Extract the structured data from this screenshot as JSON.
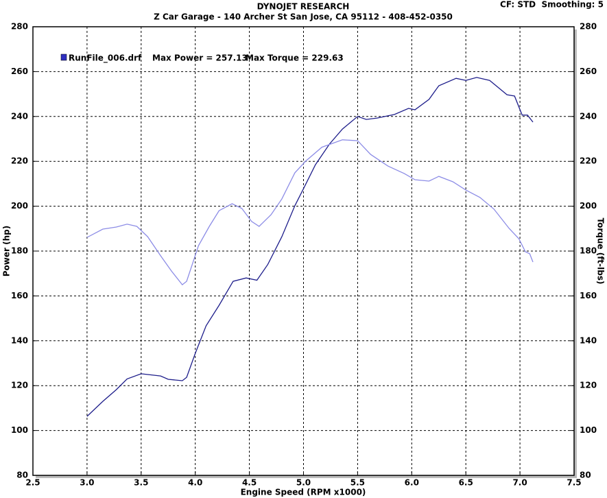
{
  "chart_data": {
    "type": "line",
    "title": "DYNOJET RESEARCH",
    "subtitle": "Z Car Garage - 140 Archer St San Jose, CA 95112 - 408-452-0350",
    "settings_text": "CF: STD  Smoothing: 5",
    "annotations": [
      "Max Power = 257.13",
      "Max Torque = 229.63"
    ],
    "x_label": "Engine Speed (RPM x1000)",
    "y_label": "Power (hp)",
    "y2_label": "Torque (ft-lbs)",
    "xlim": [
      2.5,
      7.5
    ],
    "xticks": [
      2.5,
      {
        "value": 3,
        "label": "3.0"
      },
      3.5,
      {
        "value": 4,
        "label": "4.0"
      },
      4.5,
      {
        "value": 5,
        "label": "5.0"
      },
      5.5,
      {
        "value": 6,
        "label": "6.0"
      },
      6.5,
      {
        "value": 7,
        "label": "7.0"
      },
      7.5
    ],
    "ylim": [
      80,
      280
    ],
    "yticks": [
      80,
      100,
      120,
      140,
      160,
      180,
      200,
      220,
      240,
      260,
      280
    ],
    "y2lim": [
      80,
      280
    ],
    "y2ticks": [
      80,
      100,
      120,
      140,
      160,
      180,
      200,
      220,
      240,
      260,
      280
    ],
    "grid": true,
    "series": [
      {
        "name": "RunFile_006.drf",
        "color": "#1c1c8a",
        "x": [
          3.0,
          3.146,
          3.27,
          3.37,
          3.5,
          3.68,
          3.75,
          3.88,
          3.92,
          4.0,
          4.1,
          4.22,
          4.35,
          4.47,
          4.57,
          4.67,
          4.8,
          4.92,
          5.0,
          5.11,
          5.24,
          5.36,
          5.5,
          5.58,
          5.68,
          5.84,
          5.97,
          6.03,
          6.16,
          6.25,
          6.41,
          6.5,
          6.6,
          6.72,
          6.88,
          6.95,
          7.02,
          7.07,
          7.12
        ],
        "values": [
          106.3,
          113,
          118.2,
          123,
          125.3,
          124.3,
          122.8,
          122.2,
          123.7,
          134.4,
          146.7,
          155.8,
          166.5,
          168,
          167,
          174,
          186.4,
          200.2,
          207.8,
          218.5,
          227.7,
          234.4,
          240,
          238.7,
          239.3,
          240.9,
          243.6,
          243,
          247.6,
          253.7,
          257,
          256.1,
          257.4,
          256.1,
          249.7,
          249.1,
          240.6,
          240.6,
          237.5
        ]
      },
      {
        "axis": "y2",
        "color": "#8c8ce6",
        "x": [
          3.0,
          3.146,
          3.27,
          3.37,
          3.46,
          3.56,
          3.68,
          3.78,
          3.88,
          3.92,
          4.03,
          4.13,
          4.22,
          4.34,
          4.43,
          4.52,
          4.59,
          4.7,
          4.8,
          4.92,
          5.02,
          5.17,
          5.36,
          5.5,
          5.62,
          5.78,
          5.93,
          6.03,
          6.16,
          6.25,
          6.38,
          6.5,
          6.63,
          6.76,
          6.9,
          6.99,
          7.05,
          7.09,
          7.12
        ],
        "values": [
          186.1,
          189.8,
          190.7,
          192,
          191,
          186.4,
          177.9,
          171.1,
          165,
          166.5,
          182.4,
          191,
          198,
          201.1,
          199,
          193.2,
          191,
          196.2,
          203.2,
          214.9,
          220.1,
          226.3,
          229.6,
          229.2,
          223.1,
          217.9,
          214.6,
          211.8,
          211.2,
          213.3,
          210.9,
          207.2,
          203.9,
          198.7,
          190.1,
          185.5,
          179.7,
          178.8,
          175.1
        ]
      }
    ]
  }
}
